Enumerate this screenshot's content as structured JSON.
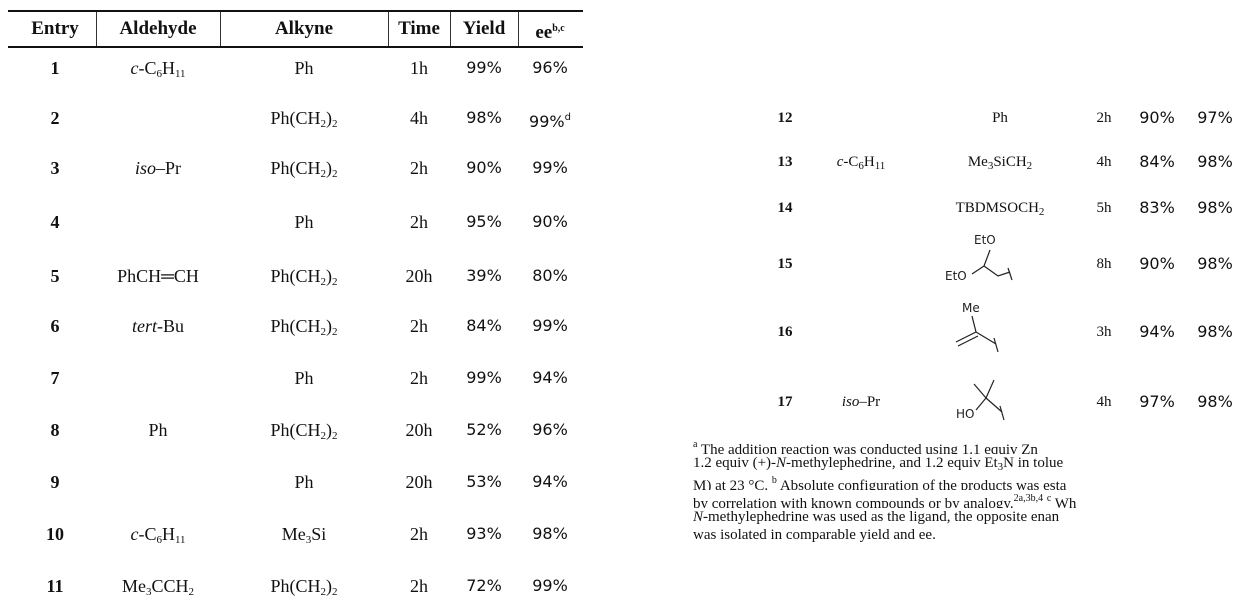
{
  "header": {
    "entry": "Entry",
    "aldehyde": "Aldehyde",
    "alkyne": "Alkyne",
    "time": "Time",
    "yield": "Yield",
    "ee": "ee",
    "ee_note": "b,c"
  },
  "rows_left": [
    {
      "entry": "1",
      "aldehyde_pre": "c",
      "aldehyde_main": "-C",
      "aldehyde_sub": "6",
      "aldehyde_mid": "H",
      "aldehyde_sub2": "11",
      "alkyne": "Ph",
      "time": "1h",
      "yield": "99%",
      "ee": "96%"
    },
    {
      "entry": "2",
      "alkyne": "Ph(CH",
      "alkyne_sub": "2",
      "alkyne_post": ")",
      "alkyne_sub2": "2",
      "time": "4h",
      "yield": "98%",
      "ee": "99%",
      "ee_note": "d"
    },
    {
      "entry": "3",
      "aldehyde_pre": "iso",
      "aldehyde_main": "–Pr",
      "alkyne": "Ph(CH",
      "alkyne_sub": "2",
      "alkyne_post": ")",
      "alkyne_sub2": "2",
      "time": "2h",
      "yield": "90%",
      "ee": "99%"
    },
    {
      "entry": "4",
      "alkyne": "Ph",
      "time": "2h",
      "yield": "95%",
      "ee": "90%"
    },
    {
      "entry": "5",
      "aldehyde_main": "PhCH═CH",
      "alkyne": "Ph(CH",
      "alkyne_sub": "2",
      "alkyne_post": ")",
      "alkyne_sub2": "2",
      "time": "20h",
      "yield": "39%",
      "ee": "80%"
    },
    {
      "entry": "6",
      "aldehyde_pre": "tert",
      "aldehyde_main": "-Bu",
      "alkyne": "Ph(CH",
      "alkyne_sub": "2",
      "alkyne_post": ")",
      "alkyne_sub2": "2",
      "time": "2h",
      "yield": "84%",
      "ee": "99%"
    },
    {
      "entry": "7",
      "alkyne": "Ph",
      "time": "2h",
      "yield": "99%",
      "ee": "94%"
    },
    {
      "entry": "8",
      "aldehyde_main": "Ph",
      "alkyne": "Ph(CH",
      "alkyne_sub": "2",
      "alkyne_post": ")",
      "alkyne_sub2": "2",
      "time": "20h",
      "yield": "52%",
      "ee": "96%"
    },
    {
      "entry": "9",
      "alkyne": "Ph",
      "time": "20h",
      "yield": "53%",
      "ee": "94%"
    },
    {
      "entry": "10",
      "aldehyde_pre": "c",
      "aldehyde_main": "-C",
      "aldehyde_sub": "6",
      "aldehyde_mid": "H",
      "aldehyde_sub2": "11",
      "alkyne": "Me",
      "alkyne_sub": "3",
      "alkyne_post": "Si",
      "time": "2h",
      "yield": "93%",
      "ee": "98%"
    },
    {
      "entry": "11",
      "aldehyde_main": "Me",
      "aldehyde_sub": "3",
      "aldehyde_mid": "CCH",
      "aldehyde_sub2": "2",
      "alkyne": "Ph(CH",
      "alkyne_sub": "2",
      "alkyne_post": ")",
      "alkyne_sub2": "2",
      "time": "2h",
      "yield": "72%",
      "ee": "99%"
    }
  ],
  "rows_right": [
    {
      "entry": "12",
      "alkyne": "Ph",
      "time": "2h",
      "yield": "90%",
      "ee": "97%"
    },
    {
      "entry": "13",
      "aldehyde_pre": "c",
      "aldehyde_main": "-C",
      "aldehyde_sub": "6",
      "aldehyde_mid": "H",
      "aldehyde_sub2": "11",
      "alkyne": "Me",
      "alkyne_sub": "3",
      "alkyne_post": "SiCH",
      "alkyne_sub2": "2",
      "time": "4h",
      "yield": "84%",
      "ee": "98%"
    },
    {
      "entry": "14",
      "alkyne": "TBDMSOCH",
      "alkyne_sub": "2",
      "time": "5h",
      "yield": "83%",
      "ee": "98%"
    },
    {
      "entry": "15",
      "struct_label_a": "EtO",
      "struct_label_b": "EtO",
      "time": "8h",
      "yield": "90%",
      "ee": "98%"
    },
    {
      "entry": "16",
      "struct_label_a": "Me",
      "time": "3h",
      "yield": "94%",
      "ee": "98%"
    },
    {
      "entry": "17",
      "aldehyde_pre": "iso",
      "aldehyde_main": "–Pr",
      "struct_label_a": "HO",
      "time": "4h",
      "yield": "97%",
      "ee": "98%"
    }
  ],
  "footnote": {
    "line1_mark": "a",
    "line1": " The addition reaction was conducted using 1.1 equiv Zn",
    "line2_pre": "1.2 equiv (+)-",
    "line2_ital": "N",
    "line2_post": "-methylephedrine, and 1.2 equiv Et",
    "line2_sub": "3",
    "line2_end": "N in tolue",
    "line3_pre": "M) at 23 °C. ",
    "line3_mark": "b",
    "line3_post": " Absolute configuration of the products was esta",
    "line4_pre": "by correlation with known compounds or by analogy.",
    "line4_sup": "2a,3b,4",
    "line4_mark": "c",
    "line4_post": " Wh",
    "line5_ital": "N",
    "line5_post": "-methylephedrine was used as the ligand, the opposite enan",
    "line6": "was isolated in comparable yield and ee."
  }
}
